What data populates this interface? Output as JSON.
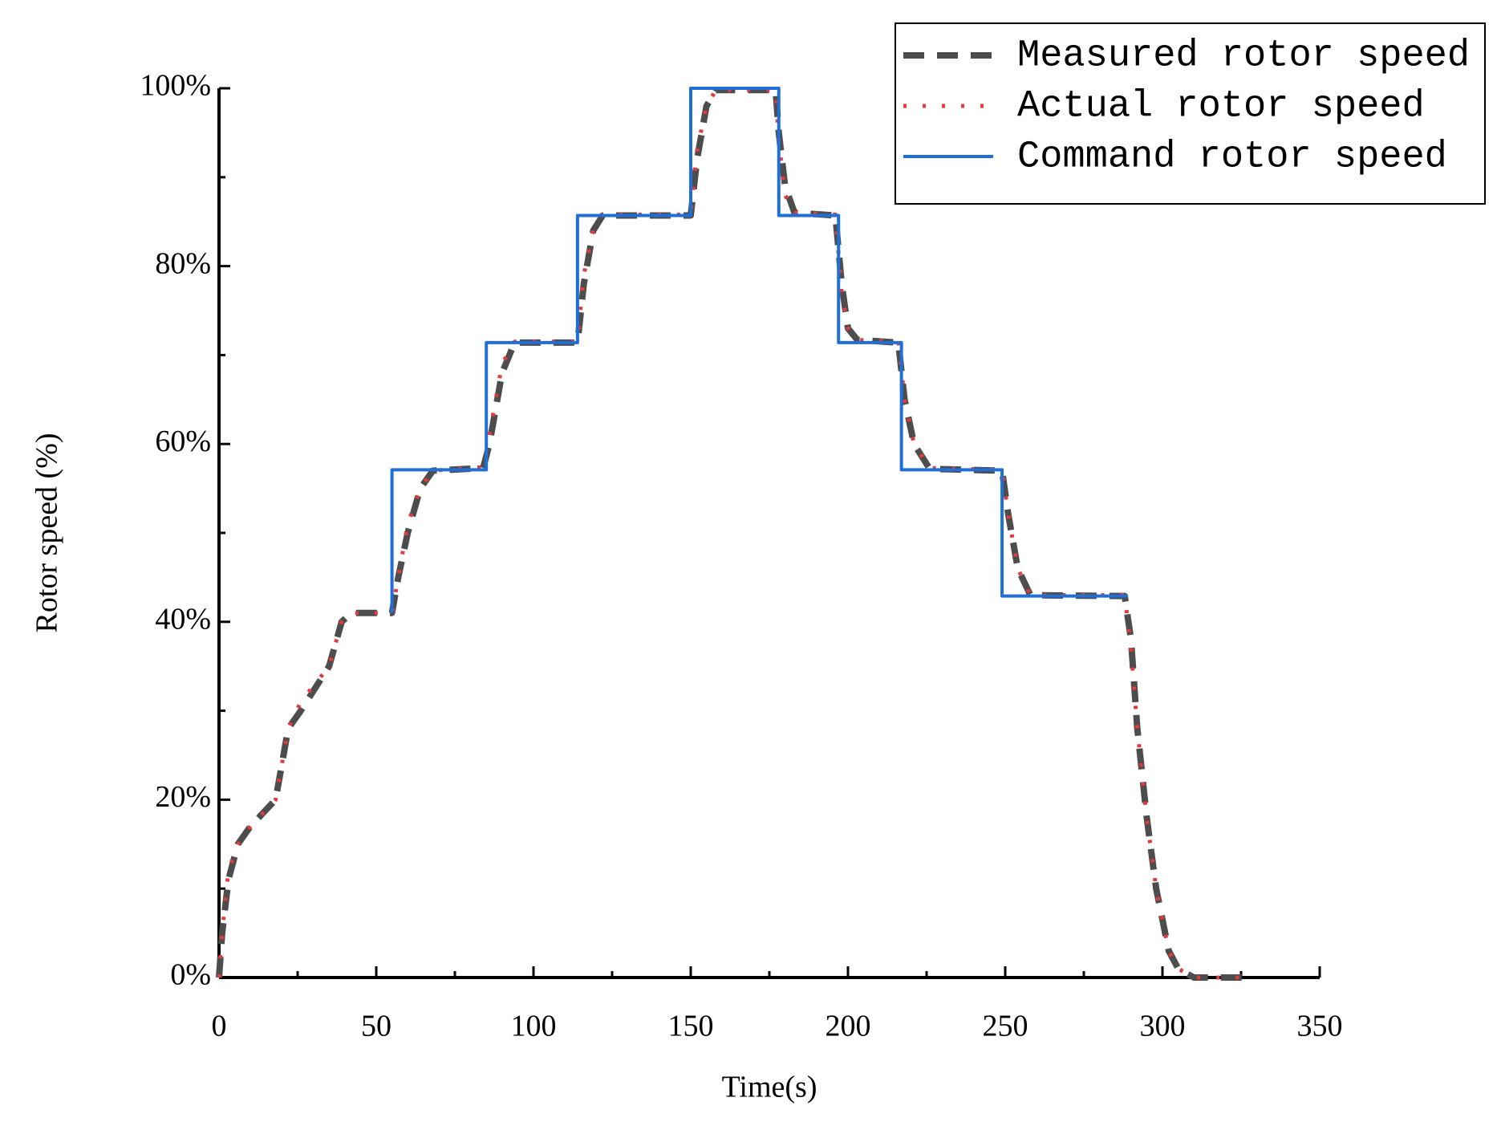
{
  "chart_data": {
    "type": "line",
    "xlabel": "Time(s)",
    "ylabel": "Rotor speed (%)",
    "xlim": [
      0,
      350
    ],
    "xticks": [
      0,
      50,
      100,
      150,
      200,
      250,
      300,
      350
    ],
    "xminorticks": [
      25,
      75,
      125,
      175,
      225,
      275,
      325
    ],
    "ylim": [
      0,
      100
    ],
    "yticks": [
      {
        "value": 0,
        "label": "0%"
      },
      {
        "value": 20,
        "label": "20%"
      },
      {
        "value": 40,
        "label": "40%"
      },
      {
        "value": 60,
        "label": "60%"
      },
      {
        "value": 80,
        "label": "80%"
      },
      {
        "value": 100,
        "label": "100%"
      }
    ],
    "yminorticks": [
      10,
      30,
      50,
      70,
      90
    ],
    "legend": "upper right",
    "series": [
      {
        "name": "Measured rotor speed",
        "color": "#4d4d4d",
        "style": "dashed",
        "x": [
          0,
          1,
          3,
          6,
          10,
          18,
          22,
          26,
          35,
          39,
          42,
          55,
          57,
          60,
          64,
          68,
          84,
          86,
          90,
          94,
          114,
          116,
          119,
          122,
          150,
          152,
          155,
          158,
          177,
          178,
          180,
          183,
          196,
          198,
          200,
          203,
          216,
          218,
          221,
          226,
          249,
          251,
          254,
          258,
          288,
          290,
          292,
          295,
          298,
          302,
          305,
          310,
          328
        ],
        "values": [
          0,
          5,
          11,
          15,
          17,
          20,
          28,
          30,
          35,
          40,
          41,
          41,
          45,
          50,
          55,
          57,
          57.3,
          60,
          68,
          71.4,
          71.4,
          78,
          84,
          85.7,
          85.7,
          92,
          98,
          99.8,
          99.8,
          95,
          89,
          86,
          85.7,
          78,
          73,
          71.7,
          71.4,
          65,
          60,
          57.2,
          57,
          52,
          46,
          43,
          42.9,
          38,
          28,
          18,
          10,
          3,
          1,
          0,
          0
        ]
      },
      {
        "name": "Actual rotor speed",
        "color": "#e03c3c",
        "style": "dotted",
        "x": [
          0,
          1,
          3,
          6,
          10,
          18,
          22,
          26,
          35,
          39,
          42,
          55,
          57,
          60,
          64,
          68,
          84,
          86,
          90,
          94,
          114,
          116,
          119,
          122,
          150,
          152,
          155,
          158,
          177,
          178,
          180,
          183,
          196,
          198,
          200,
          203,
          216,
          218,
          221,
          226,
          249,
          251,
          254,
          258,
          288,
          290,
          292,
          295,
          298,
          302,
          305,
          310,
          328
        ],
        "values": [
          0,
          5,
          12,
          15,
          17,
          20,
          28,
          31,
          35,
          40,
          41,
          41,
          45,
          51,
          55,
          57,
          57.4,
          61,
          69,
          71.5,
          71.5,
          79,
          84,
          85.8,
          85.8,
          93,
          98,
          99.8,
          99.8,
          94,
          88,
          86,
          85.8,
          77,
          73,
          71.7,
          71.5,
          65,
          60,
          57.3,
          57.1,
          52,
          46,
          43,
          43,
          37,
          28,
          18,
          10,
          3,
          1,
          0,
          0
        ]
      },
      {
        "name": "Command rotor speed",
        "color": "#1f6fd6",
        "style": "solid",
        "x": [
          55,
          55,
          85,
          85,
          114,
          114,
          150,
          150,
          178,
          178,
          197,
          197,
          217,
          217,
          249,
          249,
          289
        ],
        "values": [
          41,
          57.1,
          57.1,
          71.4,
          71.4,
          85.7,
          85.7,
          100,
          100,
          85.7,
          85.7,
          71.4,
          71.4,
          57.1,
          57.1,
          42.9,
          42.9
        ]
      }
    ]
  }
}
